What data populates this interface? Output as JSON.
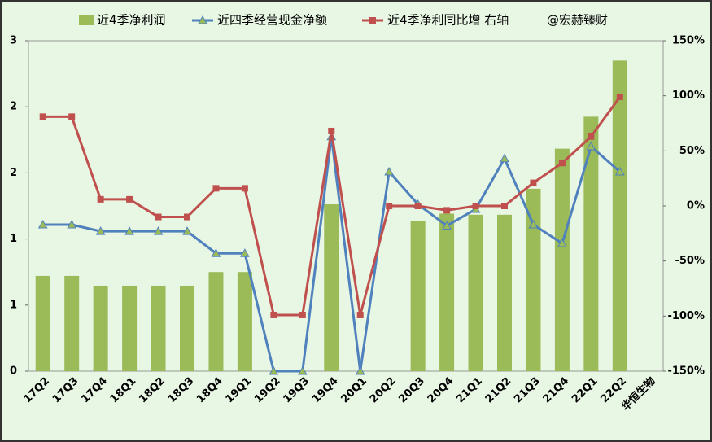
{
  "chart_data": {
    "type": "bar-line",
    "annotation": "@宏赫臻财",
    "categories": [
      "17Q2",
      "17Q3",
      "17Q4",
      "18Q1",
      "18Q2",
      "18Q3",
      "18Q4",
      "19Q1",
      "19Q2",
      "19Q3",
      "19Q4",
      "20Q1",
      "20Q2",
      "20Q3",
      "20Q4",
      "21Q1",
      "21Q2",
      "21Q3",
      "21Q4",
      "22Q1",
      "22Q2",
      "华恒生物"
    ],
    "series": [
      {
        "name": "近4季净利润",
        "type": "bar",
        "color": "#9bbb59",
        "axis": "y",
        "values": [
          0.865,
          0.865,
          0.776,
          0.776,
          0.776,
          0.776,
          0.9,
          0.9,
          0,
          0,
          1.515,
          0,
          0,
          1.367,
          1.43,
          1.42,
          1.42,
          1.656,
          2.02,
          2.31,
          2.82,
          null
        ]
      },
      {
        "name": "近四季经营现金净额",
        "type": "line",
        "color": "#4f81bd",
        "marker": "triangle",
        "axis": "y",
        "values": [
          1.33,
          1.33,
          1.27,
          1.27,
          1.27,
          1.27,
          1.07,
          1.07,
          0,
          0,
          2.13,
          0,
          1.81,
          1.515,
          1.32,
          1.47,
          1.93,
          1.33,
          1.16,
          2.04,
          1.81,
          null
        ]
      },
      {
        "name": "近4季净利同比增 右轴",
        "type": "line",
        "color": "#c0504d",
        "marker": "square",
        "axis": "y2",
        "values": [
          81,
          81,
          6,
          6,
          -10,
          -10,
          16,
          16,
          -99,
          -99,
          68,
          -99,
          0,
          0,
          -4,
          0,
          0,
          21,
          39,
          63,
          99,
          null
        ]
      }
    ],
    "ylim": [
      0,
      3
    ],
    "yticks": [
      0,
      {
        "value": 0.6,
        "label": "1"
      },
      {
        "value": 1.2,
        "label": "1"
      },
      {
        "value": 1.8,
        "label": "2"
      },
      {
        "value": 2.4,
        "label": "2"
      },
      3
    ],
    "y2lim": [
      -150,
      150
    ],
    "y2ticks": [
      {
        "value": -150,
        "label": "-150%"
      },
      {
        "value": -100,
        "label": "-100%"
      },
      {
        "value": -50,
        "label": "-50%"
      },
      {
        "value": 0,
        "label": "0%"
      },
      {
        "value": 50,
        "label": "50%"
      },
      {
        "value": 100,
        "label": "100%"
      },
      {
        "value": 150,
        "label": "150%"
      }
    ],
    "legend": "top"
  }
}
